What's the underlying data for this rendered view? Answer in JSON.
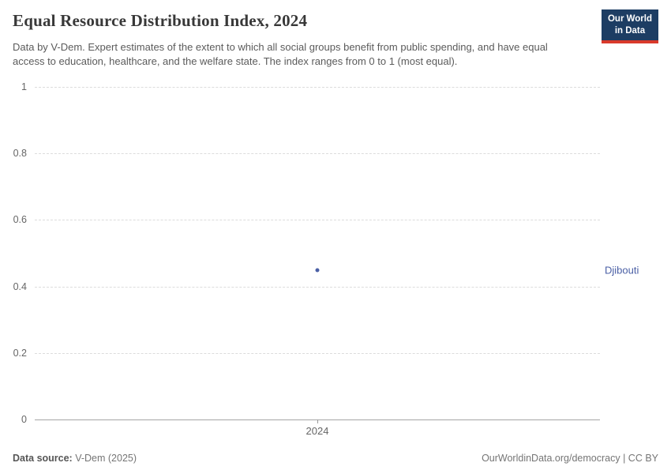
{
  "header": {
    "title": "Equal Resource Distribution Index, 2024",
    "subtitle": "Data by V-Dem. Expert estimates of the extent to which all social groups benefit from public spending, and have equal access to education, healthcare, and the welfare state. The index ranges from 0 to 1 (most equal).",
    "logo": {
      "line1": "Our World",
      "line2": "in Data",
      "bg_color": "#1d3d63",
      "accent_color": "#d93a2b"
    }
  },
  "chart_data": {
    "type": "scatter",
    "title": "Equal Resource Distribution Index, 2024",
    "xlabel": "",
    "ylabel": "",
    "x_tick_labels": [
      "2024"
    ],
    "y_ticks": [
      0,
      0.2,
      0.4,
      0.6,
      0.8,
      1
    ],
    "y_tick_labels": [
      "0",
      "0.2",
      "0.4",
      "0.6",
      "0.8",
      "1"
    ],
    "ylim": [
      0,
      1
    ],
    "grid": "horizontal-dashed",
    "legend_position": "entity-label-right",
    "series": [
      {
        "name": "Djibouti",
        "color": "#4a5fa5",
        "points": [
          {
            "x": 2024,
            "y": 0.45
          }
        ]
      }
    ]
  },
  "footer": {
    "source_label": "Data source:",
    "source_value": " V-Dem (2025)",
    "credit": "OurWorldinData.org/democracy | CC BY"
  }
}
